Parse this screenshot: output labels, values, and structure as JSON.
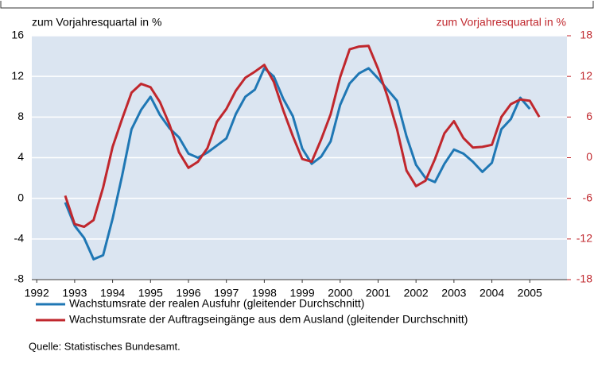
{
  "chart_data": {
    "type": "line",
    "y_label": "zum Vorjahresquartal in %",
    "y2_label": "zum Vorjahresquartal in %",
    "source": "Quelle: Statistisches Bundesamt.",
    "x": [
      1993.25,
      1993.5,
      1993.75,
      1994,
      1994.25,
      1994.5,
      1994.75,
      1995,
      1995.25,
      1995.5,
      1995.75,
      1996,
      1996.25,
      1996.5,
      1996.75,
      1997,
      1997.25,
      1997.5,
      1997.75,
      1998,
      1998.25,
      1998.5,
      1998.75,
      1999,
      1999.25,
      1999.5,
      1999.75,
      2000,
      2000.25,
      2000.5,
      2000.75,
      2001,
      2001.25,
      2001.5,
      2001.75,
      2002,
      2002.25,
      2002.5,
      2002.75,
      2003,
      2003.25,
      2003.5,
      2003.75,
      2004,
      2004.25,
      2004.5,
      2004.75,
      2005,
      2005.25,
      2005.5,
      2005.75
    ],
    "series": [
      {
        "name": "Wachstumsrate der realen Ausfuhr (gleitender Durchschnitt)",
        "color": "#1f77b4",
        "values": [
          -0.4,
          -2.7,
          -3.9,
          -6.0,
          -5.6,
          -2.0,
          2.2,
          6.8,
          8.7,
          10.0,
          8.2,
          6.9,
          6.0,
          4.4,
          4.0,
          4.5,
          5.2,
          5.9,
          8.3,
          10.0,
          10.7,
          12.8,
          12.0,
          9.8,
          8.1,
          4.9,
          3.4,
          4.1,
          5.6,
          9.2,
          11.3,
          12.3,
          12.8,
          11.8,
          10.7,
          9.6,
          6.1,
          3.3,
          2.0,
          1.6,
          3.4,
          4.8,
          4.4,
          3.6,
          2.6,
          3.5,
          6.8,
          7.8,
          9.9,
          8.8,
          null
        ]
      },
      {
        "name": "Wachstumsrate der Auftragseingänge aus dem Ausland (gleitender Durchschnitt)",
        "color": "#c0272d",
        "axis": "y2",
        "values": [
          -5.6,
          -9.8,
          -10.2,
          -9.2,
          -4.4,
          1.6,
          5.7,
          9.6,
          10.9,
          10.4,
          8.2,
          4.9,
          0.8,
          -1.5,
          -0.6,
          1.4,
          5.3,
          7.2,
          9.9,
          11.8,
          12.7,
          13.7,
          11.2,
          7.0,
          3.2,
          -0.2,
          -0.6,
          2.7,
          6.4,
          11.9,
          16.0,
          16.4,
          16.5,
          13.1,
          9.0,
          4.2,
          -1.9,
          -4.2,
          -3.4,
          -0.2,
          3.6,
          5.4,
          2.9,
          1.5,
          1.6,
          1.9,
          6.0,
          7.9,
          8.6,
          8.4,
          6.0
        ]
      }
    ],
    "xlim": [
      1992.37,
      2006.48
    ],
    "xticks": [
      {
        "value": 1992.5,
        "label": "1992"
      },
      {
        "value": 1993.5,
        "label": "1993"
      },
      {
        "value": 1994.5,
        "label": "1994"
      },
      {
        "value": 1995.5,
        "label": "1995"
      },
      {
        "value": 1996.5,
        "label": "1996"
      },
      {
        "value": 1997.5,
        "label": "1997"
      },
      {
        "value": 1998.5,
        "label": "1998"
      },
      {
        "value": 1999.5,
        "label": "1999"
      },
      {
        "value": 2000.5,
        "label": "2000"
      },
      {
        "value": 2001.5,
        "label": "2001"
      },
      {
        "value": 2002.5,
        "label": "2002"
      },
      {
        "value": 2003.5,
        "label": "2003"
      },
      {
        "value": 2004.5,
        "label": "2004"
      },
      {
        "value": 2005.5,
        "label": "2005"
      }
    ],
    "ylim": [
      -8,
      16
    ],
    "yticks": [
      -8,
      -4,
      0,
      4,
      8,
      12,
      16
    ],
    "y2lim": [
      -18,
      18
    ],
    "y2ticks": [
      -18,
      -12,
      -6,
      0,
      6,
      12,
      18
    ],
    "y2_color": "#c0272d",
    "plot_background": "#dbe5f1",
    "grid": true
  }
}
